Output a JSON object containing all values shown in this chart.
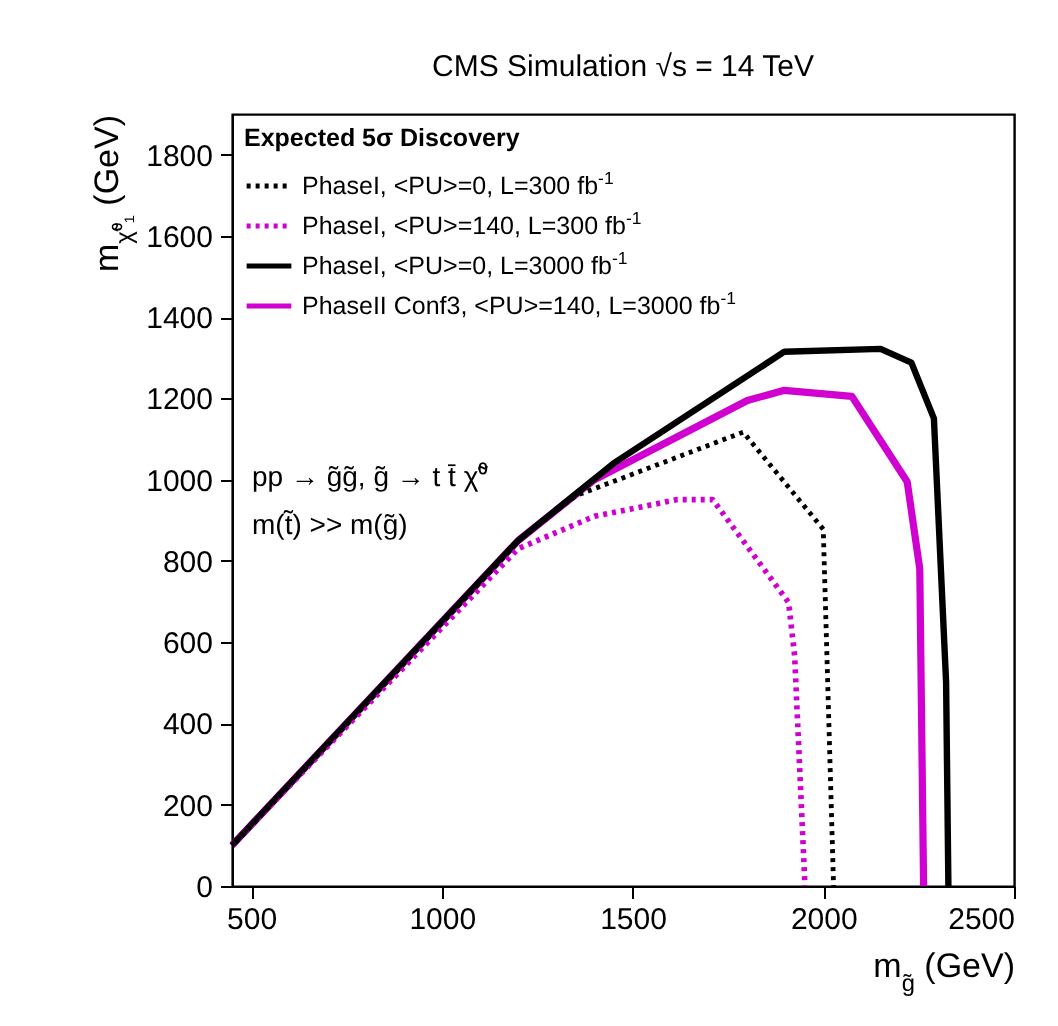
{
  "chart_data": {
    "type": "line",
    "title": "CMS Simulation    √s = 14 TeV",
    "xlabel": "m$_{g̃}$ (GeV)",
    "ylabel": "m$_{χ̃⁰₁}$ (GeV)",
    "legend_title": "Expected 5σ Discovery",
    "legend": "top left",
    "grid": false,
    "xlim": [
      450,
      2500
    ],
    "xticks": [
      500,
      1000,
      1500,
      2000,
      2500
    ],
    "ylim": [
      0,
      1900
    ],
    "yticks": [
      0,
      200,
      400,
      600,
      800,
      1000,
      1200,
      1400,
      1600,
      1800
    ],
    "annotations": [
      "pp → g̃g̃, g̃ → t t̄ χ̃⁰",
      "m(t̃) >> m(g̃)"
    ],
    "series": [
      {
        "name": "PhaseI, <PU>=0, L=300 fb$^{-1}$",
        "color": "#000000",
        "line_style": "dotted",
        "x": [
          450,
          1200,
          1350,
          1790,
          2000,
          2027
        ],
        "values": [
          100,
          850,
          960,
          1117,
          878,
          0
        ]
      },
      {
        "name": "PhaseI, <PU>=140, L=300 fb$^{-1}$",
        "color": "#d000d0",
        "line_style": "dotted",
        "x": [
          450,
          1200,
          1400,
          1618,
          1710,
          1909,
          1925,
          1952
        ],
        "values": [
          100,
          830,
          910,
          951,
          951,
          698,
          566,
          0
        ]
      },
      {
        "name": "PhaseI, <PU>=0, L=3000 fb$^{-1}$",
        "color": "#000000",
        "line_style": "solid",
        "x": [
          450,
          1200,
          1450,
          1898,
          2150,
          2231,
          2290,
          2322,
          2328
        ],
        "values": [
          100,
          850,
          1040,
          1315,
          1322,
          1288,
          1151,
          502,
          0
        ]
      },
      {
        "name": "PhaseII Conf3, <PU>=140, L=3000 fb$^{-1}$",
        "color": "#d000d0",
        "line_style": "solid",
        "x": [
          450,
          1200,
          1400,
          1801,
          1898,
          2075,
          2220,
          2253,
          2263
        ],
        "values": [
          100,
          850,
          1000,
          1195,
          1220,
          1205,
          995,
          780,
          0
        ]
      }
    ]
  }
}
